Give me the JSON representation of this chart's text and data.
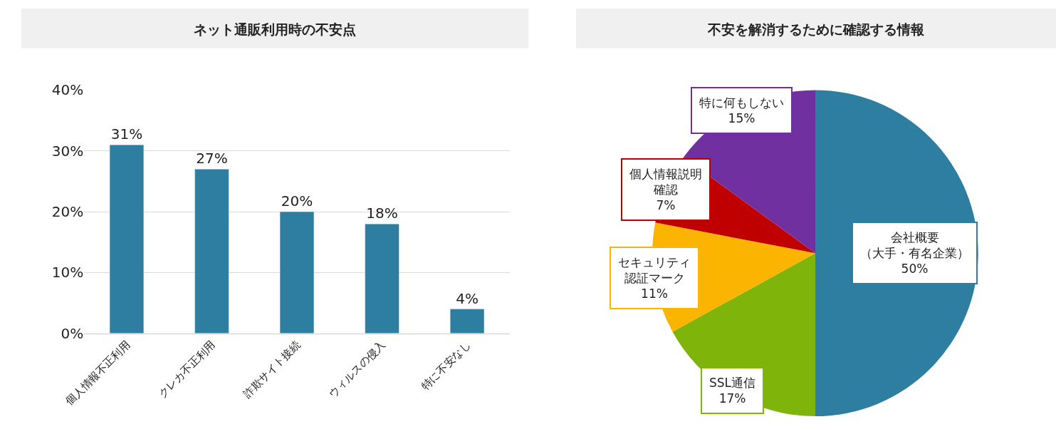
{
  "chart_data": [
    {
      "type": "bar",
      "title": "ネット通販利用時の不安点",
      "categories": [
        "個人情報不正利用",
        "クレカ不正利用",
        "詐欺サイト接続",
        "ウィルスの侵入",
        "特に不安なし"
      ],
      "values": [
        31,
        27,
        20,
        18,
        4
      ],
      "color": "#2e7ea1",
      "value_labels": [
        "31%",
        "27%",
        "20%",
        "18%",
        "4%"
      ],
      "ylim": [
        0,
        40
      ],
      "yticks": [
        {
          "value": 0,
          "label": "0%"
        },
        {
          "value": 10,
          "label": "10%"
        },
        {
          "value": 20,
          "label": "20%"
        },
        {
          "value": 30,
          "label": "30%"
        },
        {
          "value": 40,
          "label": "40%"
        }
      ],
      "grid": "y"
    },
    {
      "type": "pie",
      "title": "不安を解消するために確認する情報",
      "categories": [
        "会社概要（大手・有名企業）",
        "SSL通信",
        "セキュリティ認証マーク",
        "個人情報説明確認",
        "特に何もしない"
      ],
      "values": [
        50,
        17,
        11,
        7,
        15
      ],
      "colors": [
        "#2e7ea1",
        "#7fb40a",
        "#fbb400",
        "#c00000",
        "#7030a0"
      ],
      "value_labels": [
        "50%",
        "17%",
        "11%",
        "7%",
        "15%"
      ]
    }
  ]
}
